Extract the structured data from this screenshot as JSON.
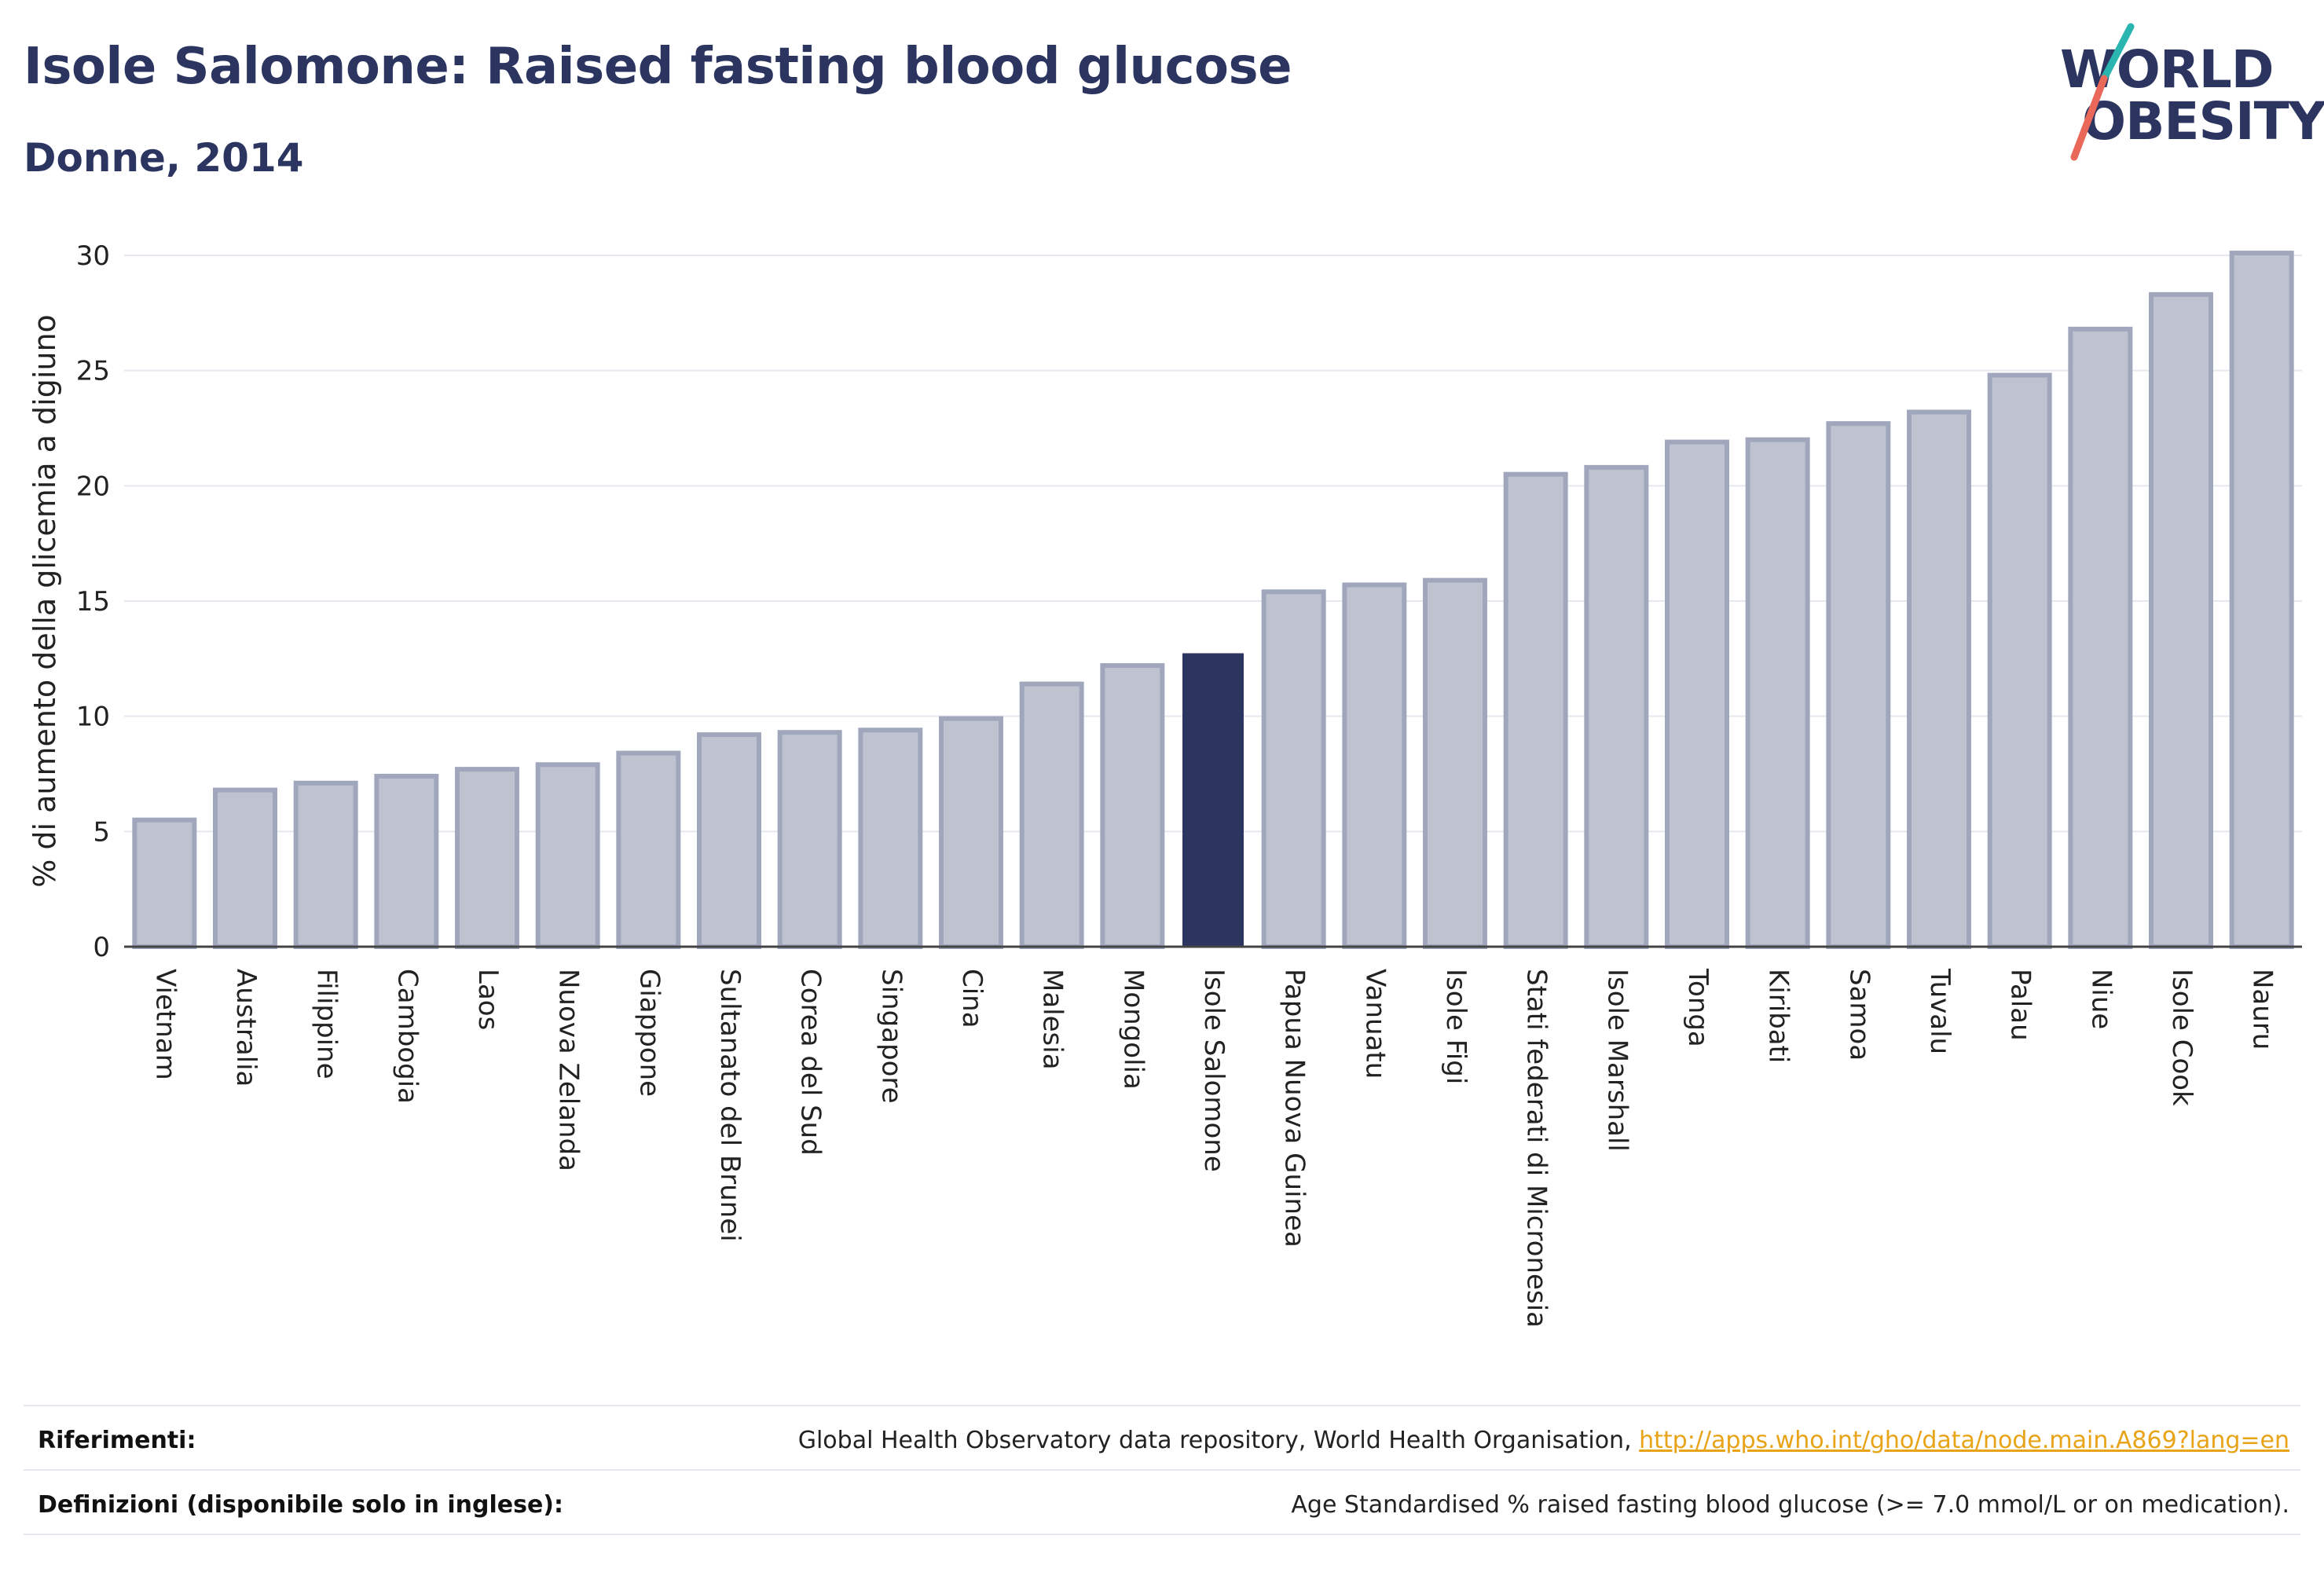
{
  "header": {
    "title": "Isole Salomone: Raised fasting blood glucose",
    "subtitle": "Donne, 2014"
  },
  "logo": {
    "line1": "WORLD",
    "line2": "OBESITY"
  },
  "colors": {
    "bar": "#bfc3d0",
    "bar_border": "#a0a7bd",
    "highlight": "#2b3560",
    "title": "#2b3560",
    "link": "#e8a317",
    "logo_slash_top": "#2bb5b0",
    "logo_slash_bottom": "#e9685a"
  },
  "chart_data": {
    "type": "bar",
    "title": "Isole Salomone: Raised fasting blood glucose",
    "subtitle": "Donne, 2014",
    "xlabel": "",
    "ylabel": "% di aumento della glicemia a digiuno",
    "ylim": [
      0,
      30
    ],
    "yticks": [
      0,
      5,
      10,
      15,
      20,
      25,
      30
    ],
    "grid": true,
    "highlight": "Isole Salomone",
    "categories": [
      "Vietnam",
      "Australia",
      "Filippine",
      "Cambogia",
      "Laos",
      "Nuova Zelanda",
      "Giappone",
      "Sultanato del Brunei",
      "Corea del Sud",
      "Singapore",
      "Cina",
      "Malesia",
      "Mongolia",
      "Isole Salomone",
      "Papua Nuova Guinea",
      "Vanuatu",
      "Isole Figi",
      "Stati federati di Micronesia",
      "Isole Marshall",
      "Tonga",
      "Kiribati",
      "Samoa",
      "Tuvalu",
      "Palau",
      "Niue",
      "Isole Cook",
      "Nauru"
    ],
    "values": [
      5.5,
      6.8,
      7.1,
      7.4,
      7.7,
      7.9,
      8.4,
      9.2,
      9.3,
      9.4,
      9.9,
      11.4,
      12.2,
      12.7,
      15.4,
      15.7,
      15.9,
      20.5,
      20.8,
      21.9,
      22.0,
      22.7,
      23.2,
      24.8,
      26.8,
      28.3,
      30.1
    ]
  },
  "footer": {
    "references_label": "Riferimenti:",
    "references_text": "Global Health Observatory data repository, World Health Organisation, ",
    "references_link": "http://apps.who.int/gho/data/node.main.A869?lang=en",
    "definitions_label": "Definizioni (disponibile solo in inglese):",
    "definitions_text": "Age Standardised % raised fasting blood glucose (>= 7.0 mmol/L or on medication)."
  }
}
